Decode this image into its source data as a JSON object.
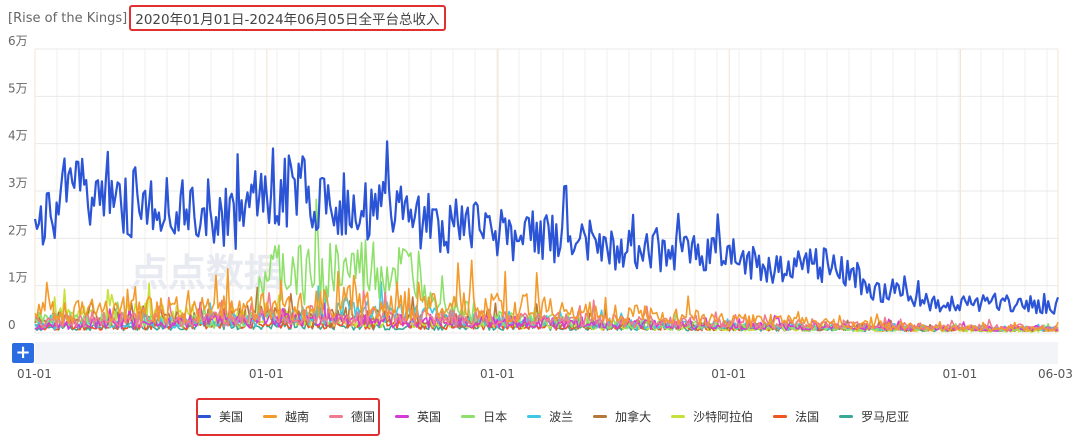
{
  "header": {
    "app_name": "[Rise of the Kings]",
    "title": "2020年01月01日-2024年06月05日全平台总收入"
  },
  "colors": {
    "美国": "#2b54d6",
    "越南": "#f39a2c",
    "德国": "#f07a8e",
    "英国": "#d63ad6",
    "日本": "#8ee06a",
    "波兰": "#3fc7e6",
    "加拿大": "#b5773a",
    "沙特阿拉伯": "#c6e23a",
    "法国": "#f0551f",
    "罗马尼亚": "#3aa896"
  },
  "watermark": "点点数据",
  "controls": {
    "add_label": "+"
  },
  "chart_data": {
    "type": "line",
    "title": "2020年01月01日-2024年06月05日全平台总收入",
    "x_range": [
      "2020-01-01",
      "2024-06-03"
    ],
    "x_ticks": [
      "01-01",
      "01-01",
      "01-01",
      "01-01",
      "01-01",
      "06-03"
    ],
    "y_ticks": [
      "0",
      "1万",
      "2万",
      "3万",
      "4万",
      "5万",
      "6万"
    ],
    "ylim": [
      0,
      60000
    ],
    "grid": true,
    "legend_position": "bottom",
    "series": [
      {
        "name": "美国",
        "x": [
          "2020-01",
          "2020-03",
          "2020-06",
          "2020-09",
          "2020-12",
          "2021-01",
          "2021-03",
          "2021-06",
          "2021-09",
          "2021-12",
          "2022-03",
          "2022-06",
          "2022-09",
          "2022-12",
          "2023-03",
          "2023-06",
          "2023-09",
          "2023-12",
          "2024-03",
          "2024-06"
        ],
        "values": [
          22000,
          29000,
          27000,
          24000,
          23000,
          31000,
          29000,
          26000,
          23000,
          21000,
          20000,
          18000,
          17000,
          16000,
          14000,
          14000,
          8000,
          6000,
          6000,
          5000
        ]
      },
      {
        "name": "越南",
        "x": [
          "2020-01",
          "2020-06",
          "2020-12",
          "2021-06",
          "2021-12",
          "2022-06",
          "2022-12",
          "2023-06",
          "2023-12",
          "2024-06"
        ],
        "values": [
          4000,
          4500,
          5000,
          6000,
          5500,
          4000,
          3000,
          2000,
          1000,
          800
        ]
      },
      {
        "name": "德国",
        "x": [
          "2020-01",
          "2020-06",
          "2020-12",
          "2021-06",
          "2021-12",
          "2022-06",
          "2022-12",
          "2023-06",
          "2023-12",
          "2024-06"
        ],
        "values": [
          2500,
          2800,
          3000,
          3200,
          2800,
          2500,
          2000,
          1600,
          1200,
          1000
        ]
      },
      {
        "name": "英国",
        "x": [
          "2020-01",
          "2020-06",
          "2020-12",
          "2021-06",
          "2021-12",
          "2022-06",
          "2022-12",
          "2023-06",
          "2023-12",
          "2024-06"
        ],
        "values": [
          1500,
          2000,
          2500,
          2600,
          2200,
          1800,
          1500,
          1200,
          900,
          800
        ]
      },
      {
        "name": "日本",
        "x": [
          "2020-01",
          "2020-06",
          "2020-12",
          "2021-01",
          "2021-06",
          "2021-09",
          "2021-12",
          "2022-06",
          "2022-12",
          "2023-06",
          "2023-12",
          "2024-06"
        ],
        "values": [
          3000,
          2500,
          2000,
          11500,
          12000,
          11000,
          3000,
          2000,
          1500,
          1000,
          800,
          700
        ]
      },
      {
        "name": "波兰",
        "x": [
          "2020-01",
          "2020-06",
          "2020-12",
          "2021-06",
          "2021-12",
          "2022-06",
          "2022-12",
          "2023-06",
          "2023-12",
          "2024-06"
        ],
        "values": [
          1500,
          2000,
          2500,
          4500,
          2500,
          2000,
          1500,
          1200,
          1000,
          900
        ]
      },
      {
        "name": "加拿大",
        "x": [
          "2020-01",
          "2020-06",
          "2020-12",
          "2021-06",
          "2021-12",
          "2022-06",
          "2022-12",
          "2023-06",
          "2023-12",
          "2024-06"
        ],
        "values": [
          2500,
          3000,
          3500,
          3000,
          2500,
          2000,
          1500,
          1200,
          900,
          800
        ]
      },
      {
        "name": "沙特阿拉伯",
        "x": [
          "2020-01",
          "2020-06",
          "2020-12",
          "2021-06",
          "2021-12",
          "2022-06",
          "2022-12",
          "2023-06",
          "2023-12",
          "2024-06"
        ],
        "values": [
          3000,
          4000,
          3500,
          2500,
          2000,
          1500,
          1000,
          800,
          600,
          500
        ]
      },
      {
        "name": "法国",
        "x": [
          "2020-01",
          "2020-06",
          "2020-12",
          "2021-06",
          "2021-12",
          "2022-06",
          "2022-12",
          "2023-06",
          "2023-12",
          "2024-06"
        ],
        "values": [
          1200,
          1500,
          1800,
          1700,
          1500,
          1300,
          1100,
          900,
          700,
          600
        ]
      },
      {
        "name": "罗马尼亚",
        "x": [
          "2020-01",
          "2020-06",
          "2020-12",
          "2021-06",
          "2021-12",
          "2022-06",
          "2022-12",
          "2023-06",
          "2023-12",
          "2024-06"
        ],
        "values": [
          1000,
          1200,
          1500,
          1400,
          1300,
          1100,
          900,
          800,
          700,
          600
        ]
      }
    ]
  }
}
